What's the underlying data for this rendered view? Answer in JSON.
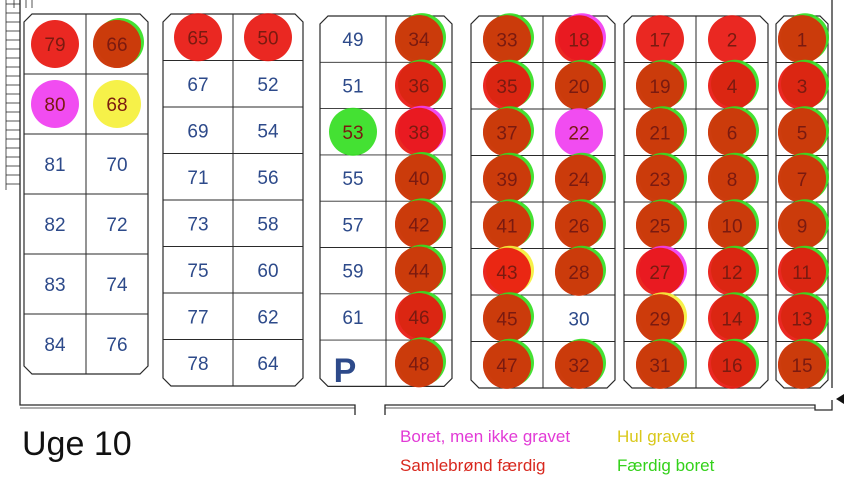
{
  "title": "Uge 10",
  "parking_label": "P",
  "legend": [
    {
      "key": "boret_ikke_gravet",
      "label": "Boret, men ikke gravet",
      "color": "#e23ad6"
    },
    {
      "key": "hul_gravet",
      "label": "Hul gravet",
      "color": "#e6d51c"
    },
    {
      "key": "samlebrond_faerdig",
      "label": "Samlebrønd færdig",
      "color": "#d8281e"
    },
    {
      "key": "faerdig_boret",
      "label": "Færdig boret",
      "color": "#33d11a"
    }
  ],
  "colors": {
    "boret_ikke_gravet": "#f03df0",
    "hul_gravet": "#f5f03a",
    "samlebrond_faerdig": "#e8160f",
    "faerdig_boret": "#34de22",
    "done_dark": "#c8400a",
    "number_text": "#2d4a8a",
    "grid_line": "#2a2a2a"
  },
  "blocks": [
    {
      "id": "A",
      "rows": [
        [
          "79",
          "66"
        ],
        [
          "80",
          "68"
        ],
        [
          "81",
          "70"
        ],
        [
          "82",
          "72"
        ],
        [
          "83",
          "74"
        ],
        [
          "84",
          "76"
        ]
      ]
    },
    {
      "id": "B",
      "rows": [
        [
          "65",
          "50"
        ],
        [
          "67",
          "52"
        ],
        [
          "69",
          "54"
        ],
        [
          "71",
          "56"
        ],
        [
          "73",
          "58"
        ],
        [
          "75",
          "60"
        ],
        [
          "77",
          "62"
        ],
        [
          "78",
          "64"
        ]
      ]
    },
    {
      "id": "C",
      "rows": [
        [
          "49",
          "34"
        ],
        [
          "51",
          "36"
        ],
        [
          "53",
          "38"
        ],
        [
          "55",
          "40"
        ],
        [
          "57",
          "42"
        ],
        [
          "59",
          "44"
        ],
        [
          "61",
          "46"
        ],
        [
          "",
          "48"
        ]
      ]
    },
    {
      "id": "D",
      "rows": [
        [
          "33",
          "18"
        ],
        [
          "35",
          "20"
        ],
        [
          "37",
          "22"
        ],
        [
          "39",
          "24"
        ],
        [
          "41",
          "26"
        ],
        [
          "43",
          "28"
        ],
        [
          "45",
          "30"
        ],
        [
          "47",
          "32"
        ]
      ]
    },
    {
      "id": "E",
      "rows": [
        [
          "17",
          "2"
        ],
        [
          "19",
          "4"
        ],
        [
          "21",
          "6"
        ],
        [
          "23",
          "8"
        ],
        [
          "25",
          "10"
        ],
        [
          "27",
          "12"
        ],
        [
          "29",
          "14"
        ],
        [
          "31",
          "16"
        ]
      ]
    },
    {
      "id": "F",
      "rows": [
        [
          "1"
        ],
        [
          "3"
        ],
        [
          "5"
        ],
        [
          "7"
        ],
        [
          "9"
        ],
        [
          "11"
        ],
        [
          "13"
        ],
        [
          "15"
        ]
      ]
    }
  ],
  "plots": {
    "79": [
      "samlebrond_faerdig"
    ],
    "66": [
      "faerdig_boret",
      "samlebrond_faerdig",
      "done_dark"
    ],
    "80": [
      "boret_ikke_gravet"
    ],
    "68": [
      "hul_gravet"
    ],
    "65": [
      "samlebrond_faerdig"
    ],
    "50": [
      "samlebrond_faerdig"
    ],
    "53": [
      "faerdig_boret"
    ],
    "34": [
      "faerdig_boret",
      "samlebrond_faerdig",
      "done_dark"
    ],
    "36": [
      "faerdig_boret",
      "samlebrond_faerdig"
    ],
    "38": [
      "boret_ikke_gravet",
      "samlebrond_faerdig"
    ],
    "40": [
      "faerdig_boret",
      "samlebrond_faerdig",
      "done_dark"
    ],
    "42": [
      "faerdig_boret",
      "samlebrond_faerdig",
      "done_dark"
    ],
    "44": [
      "faerdig_boret",
      "samlebrond_faerdig",
      "done_dark"
    ],
    "46": [
      "faerdig_boret",
      "samlebrond_faerdig"
    ],
    "48": [
      "faerdig_boret",
      "samlebrond_faerdig",
      "done_dark"
    ],
    "33": [
      "faerdig_boret",
      "samlebrond_faerdig",
      "done_dark"
    ],
    "35": [
      "faerdig_boret",
      "samlebrond_faerdig"
    ],
    "37": [
      "faerdig_boret",
      "samlebrond_faerdig",
      "done_dark"
    ],
    "39": [
      "faerdig_boret",
      "samlebrond_faerdig",
      "done_dark"
    ],
    "41": [
      "faerdig_boret",
      "samlebrond_faerdig",
      "done_dark"
    ],
    "43": [
      "hul_gravet",
      "samlebrond_faerdig"
    ],
    "45": [
      "faerdig_boret",
      "samlebrond_faerdig",
      "done_dark"
    ],
    "47": [
      "faerdig_boret",
      "samlebrond_faerdig",
      "done_dark"
    ],
    "18": [
      "boret_ikke_gravet",
      "samlebrond_faerdig"
    ],
    "20": [
      "faerdig_boret",
      "samlebrond_faerdig",
      "done_dark"
    ],
    "22": [
      "boret_ikke_gravet"
    ],
    "24": [
      "faerdig_boret",
      "samlebrond_faerdig",
      "done_dark"
    ],
    "26": [
      "faerdig_boret",
      "samlebrond_faerdig",
      "done_dark"
    ],
    "28": [
      "faerdig_boret",
      "samlebrond_faerdig",
      "done_dark"
    ],
    "32": [
      "faerdig_boret",
      "samlebrond_faerdig",
      "done_dark"
    ],
    "17": [
      "samlebrond_faerdig"
    ],
    "2": [
      "samlebrond_faerdig"
    ],
    "19": [
      "faerdig_boret",
      "samlebrond_faerdig",
      "done_dark"
    ],
    "4": [
      "faerdig_boret",
      "samlebrond_faerdig"
    ],
    "21": [
      "faerdig_boret",
      "samlebrond_faerdig",
      "done_dark"
    ],
    "6": [
      "faerdig_boret",
      "samlebrond_faerdig",
      "done_dark"
    ],
    "23": [
      "faerdig_boret",
      "samlebrond_faerdig",
      "done_dark"
    ],
    "8": [
      "faerdig_boret",
      "samlebrond_faerdig",
      "done_dark"
    ],
    "25": [
      "faerdig_boret",
      "samlebrond_faerdig",
      "done_dark"
    ],
    "10": [
      "faerdig_boret",
      "samlebrond_faerdig",
      "done_dark"
    ],
    "27": [
      "boret_ikke_gravet",
      "samlebrond_faerdig"
    ],
    "12": [
      "faerdig_boret",
      "samlebrond_faerdig"
    ],
    "29": [
      "hul_gravet",
      "samlebrond_faerdig",
      "done_dark"
    ],
    "14": [
      "faerdig_boret",
      "samlebrond_faerdig"
    ],
    "31": [
      "faerdig_boret",
      "samlebrond_faerdig",
      "done_dark"
    ],
    "16": [
      "faerdig_boret",
      "samlebrond_faerdig"
    ],
    "1": [
      "faerdig_boret",
      "samlebrond_faerdig",
      "done_dark"
    ],
    "3": [
      "faerdig_boret",
      "samlebrond_faerdig"
    ],
    "5": [
      "faerdig_boret",
      "samlebrond_faerdig",
      "done_dark"
    ],
    "7": [
      "faerdig_boret",
      "samlebrond_faerdig",
      "done_dark"
    ],
    "9": [
      "faerdig_boret",
      "samlebrond_faerdig",
      "done_dark"
    ],
    "11": [
      "faerdig_boret",
      "samlebrond_faerdig"
    ],
    "13": [
      "faerdig_boret",
      "samlebrond_faerdig"
    ],
    "15": [
      "faerdig_boret",
      "samlebrond_faerdig",
      "done_dark"
    ]
  }
}
